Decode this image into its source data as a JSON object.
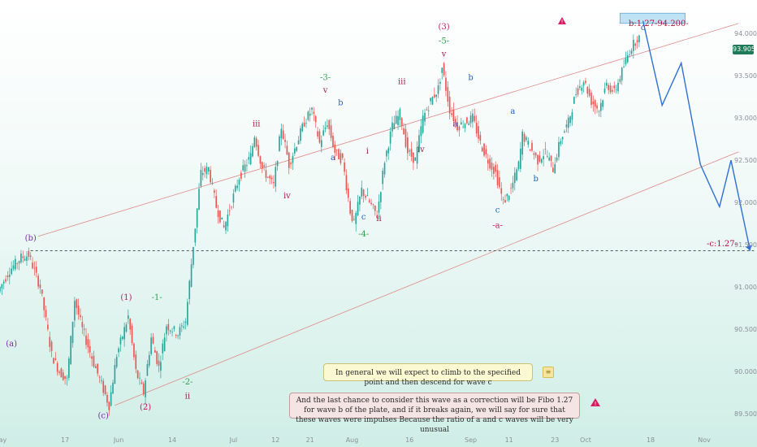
{
  "chart_data": {
    "type": "candlestick",
    "title": "",
    "xlabel": "",
    "ylabel": "",
    "ylim": [
      89.3,
      94.3
    ],
    "y_ticks": [
      89.5,
      90.0,
      90.5,
      91.0,
      91.5,
      92.0,
      92.5,
      93.0,
      93.5,
      94.0
    ],
    "y_tick_labels": [
      "89.500",
      "90.000",
      "90.500",
      "91.000",
      "91.500",
      "92.000",
      "92.500",
      "93.000",
      "93.500",
      "94.000"
    ],
    "x_ticks": [
      {
        "label": "May",
        "day": 0
      },
      {
        "label": "17",
        "day": 17
      },
      {
        "label": "Jun",
        "day": 31
      },
      {
        "label": "14",
        "day": 45
      },
      {
        "label": "Jul",
        "day": 61
      },
      {
        "label": "12",
        "day": 72
      },
      {
        "label": "21",
        "day": 81
      },
      {
        "label": "Aug",
        "day": 92
      },
      {
        "label": "16",
        "day": 107
      },
      {
        "label": "Sep",
        "day": 123
      },
      {
        "label": "11",
        "day": 133
      },
      {
        "label": "23",
        "day": 145
      },
      {
        "label": "Oct",
        "day": 153
      },
      {
        "label": "18",
        "day": 170
      },
      {
        "label": "Nov",
        "day": 184
      }
    ],
    "xlim_days": [
      0,
      191
    ],
    "current_price": "93.905",
    "price_path": [
      [
        0,
        90.95
      ],
      [
        3,
        91.2
      ],
      [
        6,
        91.35
      ],
      [
        8,
        91.38
      ],
      [
        11,
        91.0
      ],
      [
        14,
        90.2
      ],
      [
        16,
        90.0
      ],
      [
        18,
        89.9
      ],
      [
        20,
        90.85
      ],
      [
        22,
        90.5
      ],
      [
        25,
        90.1
      ],
      [
        27,
        89.85
      ],
      [
        29,
        89.6
      ],
      [
        31,
        90.2
      ],
      [
        34,
        90.65
      ],
      [
        36,
        90.0
      ],
      [
        38,
        89.75
      ],
      [
        40,
        90.4
      ],
      [
        42,
        90.05
      ],
      [
        44,
        90.55
      ],
      [
        47,
        90.45
      ],
      [
        49,
        90.6
      ],
      [
        51,
        91.5
      ],
      [
        53,
        92.35
      ],
      [
        55,
        92.4
      ],
      [
        57,
        91.95
      ],
      [
        59,
        91.7
      ],
      [
        61,
        92.0
      ],
      [
        63,
        92.3
      ],
      [
        66,
        92.55
      ],
      [
        67,
        92.8
      ],
      [
        69,
        92.4
      ],
      [
        72,
        92.2
      ],
      [
        74,
        92.9
      ],
      [
        76,
        92.45
      ],
      [
        78,
        92.7
      ],
      [
        80,
        92.95
      ],
      [
        82,
        93.1
      ],
      [
        84,
        92.7
      ],
      [
        86,
        92.95
      ],
      [
        88,
        92.6
      ],
      [
        90,
        92.5
      ],
      [
        92,
        91.9
      ],
      [
        93,
        91.75
      ],
      [
        95,
        92.15
      ],
      [
        97,
        92.0
      ],
      [
        99,
        91.85
      ],
      [
        101,
        92.5
      ],
      [
        103,
        92.9
      ],
      [
        105,
        93.05
      ],
      [
        107,
        92.6
      ],
      [
        109,
        92.5
      ],
      [
        111,
        93.0
      ],
      [
        113,
        93.2
      ],
      [
        115,
        93.35
      ],
      [
        116,
        93.6
      ],
      [
        118,
        93.1
      ],
      [
        120,
        92.9
      ],
      [
        122,
        92.95
      ],
      [
        124,
        93.0
      ],
      [
        126,
        92.7
      ],
      [
        128,
        92.5
      ],
      [
        130,
        92.35
      ],
      [
        132,
        92.0
      ],
      [
        134,
        92.15
      ],
      [
        136,
        92.45
      ],
      [
        137,
        92.8
      ],
      [
        139,
        92.65
      ],
      [
        141,
        92.5
      ],
      [
        143,
        92.6
      ],
      [
        145,
        92.4
      ],
      [
        147,
        92.75
      ],
      [
        149,
        92.95
      ],
      [
        151,
        93.3
      ],
      [
        153,
        93.45
      ],
      [
        155,
        93.2
      ],
      [
        157,
        93.1
      ],
      [
        159,
        93.4
      ],
      [
        161,
        93.3
      ],
      [
        163,
        93.55
      ],
      [
        165,
        93.8
      ],
      [
        167,
        93.95
      ]
    ],
    "projection": [
      [
        168,
        94.15
      ],
      [
        173,
        93.15
      ],
      [
        178,
        93.65
      ],
      [
        183,
        92.45
      ],
      [
        188,
        91.95
      ],
      [
        191,
        92.5
      ],
      [
        196,
        91.43
      ]
    ],
    "dashed_level": 91.43,
    "channel_upper": [
      [
        10,
        91.6
      ],
      [
        193,
        94.12
      ]
    ],
    "channel_lower": [
      [
        30,
        89.6
      ],
      [
        193,
        92.6
      ]
    ],
    "target_zone": {
      "day_from": 162,
      "day_to": 179,
      "y_from": 94.12,
      "y_to": 94.24
    },
    "wave_labels": [
      {
        "text": "(b)",
        "day": 8,
        "price": 91.55,
        "color": "#7a2aa8"
      },
      {
        "text": "(a)",
        "day": 3,
        "price": 90.3,
        "color": "#7a2aa8"
      },
      {
        "text": "(c)",
        "day": 27,
        "price": 89.45,
        "color": "#7a2aa8"
      },
      {
        "text": "(1)",
        "day": 33,
        "price": 90.85,
        "color": "#c2185b"
      },
      {
        "text": "(2)",
        "day": 38,
        "price": 89.55,
        "color": "#c2185b"
      },
      {
        "text": "-1-",
        "day": 41,
        "price": 90.85,
        "color": "#2e9e4c"
      },
      {
        "text": "-2-",
        "day": 49,
        "price": 89.85,
        "color": "#2e9e4c"
      },
      {
        "text": "ii",
        "day": 49,
        "price": 89.68,
        "color": "#a31c49"
      },
      {
        "text": "iii",
        "day": 67,
        "price": 92.9,
        "color": "#a31c49"
      },
      {
        "text": "iv",
        "day": 75,
        "price": 92.05,
        "color": "#a31c49"
      },
      {
        "text": "-3-",
        "day": 85,
        "price": 93.45,
        "color": "#2e9e4c"
      },
      {
        "text": "v",
        "day": 85,
        "price": 93.3,
        "color": "#a31c49"
      },
      {
        "text": "b",
        "day": 89,
        "price": 93.15,
        "color": "#1f5fc4"
      },
      {
        "text": "a",
        "day": 87,
        "price": 92.5,
        "color": "#1f5fc4"
      },
      {
        "text": "i",
        "day": 96,
        "price": 92.58,
        "color": "#a31c49"
      },
      {
        "text": "c",
        "day": 95,
        "price": 91.8,
        "color": "#1f5fc4"
      },
      {
        "text": "-4-",
        "day": 95,
        "price": 91.6,
        "color": "#2e9e4c"
      },
      {
        "text": "ii",
        "day": 99,
        "price": 91.78,
        "color": "#a31c49"
      },
      {
        "text": "iii",
        "day": 105,
        "price": 93.4,
        "color": "#a31c49"
      },
      {
        "text": "iv",
        "day": 110,
        "price": 92.6,
        "color": "#a31c49"
      },
      {
        "text": "(3)",
        "day": 116,
        "price": 94.05,
        "color": "#c2185b"
      },
      {
        "text": "-5-",
        "day": 116,
        "price": 93.88,
        "color": "#2e9e4c"
      },
      {
        "text": "v",
        "day": 116,
        "price": 93.73,
        "color": "#a31c49"
      },
      {
        "text": "b",
        "day": 123,
        "price": 93.45,
        "color": "#1f5fc4"
      },
      {
        "text": "a",
        "day": 119,
        "price": 92.9,
        "color": "#1f5fc4"
      },
      {
        "text": "a",
        "day": 134,
        "price": 93.05,
        "color": "#1f5fc4"
      },
      {
        "text": "c",
        "day": 130,
        "price": 91.88,
        "color": "#1f5fc4"
      },
      {
        "text": "-a-",
        "day": 130,
        "price": 91.7,
        "color": "#c2185b"
      },
      {
        "text": "b",
        "day": 140,
        "price": 92.25,
        "color": "#1f5fc4"
      },
      {
        "text": "c",
        "day": 168,
        "price": 94.04,
        "color": "#1f5fc4"
      }
    ]
  },
  "annotations": {
    "target_label": "b:1.27-94.200-",
    "level_label": "-c:1.27-",
    "note_1": "In general we will expect to climb to the specified point and then descend for wave c",
    "note_2": "And the last chance to consider this wave as a correction will be Fibo 1.27 for wave b of the plate, and if it breaks again, we will say for sure that these waves were impulses Because the ratio of a and c waves will be very unusual"
  },
  "colors": {
    "up": "#26a69a",
    "down": "#ef5350",
    "projection": "#2f6fd6",
    "channel": "#e08a8a",
    "dashed_level": "#4a5a5a",
    "warning": "#d81b60"
  },
  "icons": [
    "warning-icon",
    "note-icon"
  ]
}
